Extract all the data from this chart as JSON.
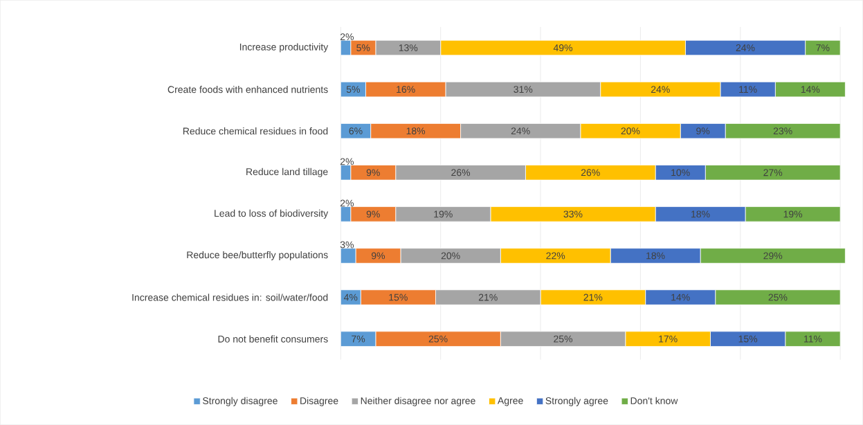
{
  "chart_data": {
    "type": "bar",
    "orientation": "horizontal",
    "stacked": true,
    "categories": [
      "Increase productivity",
      "Create foods with enhanced  nutrients",
      "Reduce chemical residues in food",
      "Reduce land tillage",
      "Lead to loss of biodiversity",
      "Reduce bee/butterfly populations",
      "Increase chemical residues in: soil/water/food",
      "Do not benefit consumers"
    ],
    "series": [
      {
        "name": "Strongly disagree",
        "color": "#5b9bd5",
        "values": [
          2,
          5,
          6,
          2,
          2,
          3,
          4,
          7
        ],
        "value_labels": [
          "2%",
          "5%",
          "6%",
          "2%",
          "2%",
          "3%",
          "4%",
          "7%"
        ]
      },
      {
        "name": "Disagree",
        "color": "#ed7d31",
        "values": [
          5,
          16,
          18,
          9,
          9,
          9,
          15,
          25
        ],
        "value_labels": [
          "5%",
          "16%",
          "18%",
          "9%",
          "9%",
          "9%",
          "15%",
          "25%"
        ]
      },
      {
        "name": "Neither disagree nor agree",
        "color": "#a5a5a5",
        "values": [
          13,
          31,
          24,
          26,
          19,
          20,
          21,
          25
        ],
        "value_labels": [
          "13%",
          "31%",
          "24%",
          "26%",
          "19%",
          "20%",
          "21%",
          "25%"
        ]
      },
      {
        "name": "Agree",
        "color": "#ffc000",
        "values": [
          49,
          24,
          20,
          26,
          33,
          22,
          21,
          17
        ],
        "value_labels": [
          "49%",
          "24%",
          "20%",
          "26%",
          "33%",
          "22%",
          "21%",
          "17%"
        ]
      },
      {
        "name": "Strongly agree",
        "color": "#4472c4",
        "values": [
          24,
          11,
          9,
          10,
          18,
          18,
          14,
          15
        ],
        "value_labels": [
          "24%",
          "11%",
          "9%",
          "10%",
          "18%",
          "18%",
          "14%",
          "15%"
        ]
      },
      {
        "name": "Don't know",
        "color": "#70ad47",
        "values": [
          7,
          14,
          23,
          27,
          19,
          29,
          25,
          11
        ],
        "value_labels": [
          "7%",
          "14%",
          "23%",
          "27%",
          "19%",
          "29%",
          "25%",
          "11%"
        ]
      }
    ],
    "xlim": [
      0,
      101
    ],
    "xticks": [
      {
        "value": 0,
        "label": null
      },
      {
        "value": 20,
        "label": null
      },
      {
        "value": 40,
        "label": null
      },
      {
        "value": 60,
        "label": null
      },
      {
        "value": 80,
        "label": null
      },
      {
        "value": 100,
        "label": null
      }
    ],
    "grid": "x",
    "legend": "bottom",
    "tick_labels": "y"
  }
}
